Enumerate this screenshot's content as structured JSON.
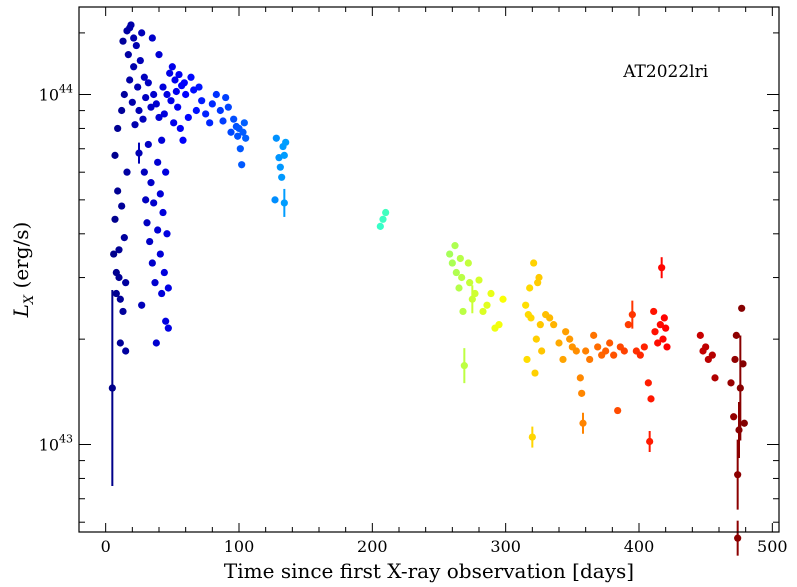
{
  "chart_data": {
    "type": "scatter",
    "title": "",
    "annotation": "AT2022lri",
    "xlabel": "Time since first X-ray observation [days]",
    "ylabel": "erg/s",
    "ylabel_symbol": "L",
    "ylabel_subscript": "X",
    "xlim": [
      -20,
      505
    ],
    "ylim_log10": [
      42.75,
      44.25
    ],
    "x_ticks": [
      0,
      100,
      200,
      300,
      400,
      500
    ],
    "x_tick_labels": [
      "0",
      "100",
      "200",
      "300",
      "400",
      "500"
    ],
    "y_ticks_log10": [
      43,
      44
    ],
    "y_tick_labels": [
      {
        "base": "10",
        "exp": "43"
      },
      {
        "base": "10",
        "exp": "44"
      }
    ],
    "y_minor_ticks_log10": [
      42.778,
      42.845,
      42.903,
      42.954,
      43.301,
      43.477,
      43.602,
      43.699,
      43.778,
      43.845,
      43.903,
      43.954,
      44.176
    ],
    "color_scale": "jet (by time)",
    "points": [
      {
        "x": 5,
        "y": 1.45e+43,
        "err": 0.28
      },
      {
        "x": 6,
        "y": 3.5e+43
      },
      {
        "x": 7,
        "y": 6.7e+43
      },
      {
        "x": 7,
        "y": 4.4e+43
      },
      {
        "x": 8,
        "y": 3.1e+43
      },
      {
        "x": 8,
        "y": 2.7e+43
      },
      {
        "x": 9,
        "y": 8e+43
      },
      {
        "x": 9,
        "y": 5.3e+43
      },
      {
        "x": 10,
        "y": 3.6e+43
      },
      {
        "x": 10,
        "y": 3e+43
      },
      {
        "x": 11,
        "y": 2.6e+43
      },
      {
        "x": 11,
        "y": 1.95e+43
      },
      {
        "x": 12,
        "y": 4.8e+43
      },
      {
        "x": 12,
        "y": 9e+43
      },
      {
        "x": 13,
        "y": 1.42e+44
      },
      {
        "x": 13,
        "y": 2.4e+43
      },
      {
        "x": 14,
        "y": 1e+44
      },
      {
        "x": 14,
        "y": 3.9e+43
      },
      {
        "x": 15,
        "y": 1.85e+43
      },
      {
        "x": 15,
        "y": 2.9e+43
      },
      {
        "x": 16,
        "y": 1.52e+44
      },
      {
        "x": 16,
        "y": 6e+43
      },
      {
        "x": 17,
        "y": 1.3e+44
      },
      {
        "x": 18,
        "y": 1.55e+44
      },
      {
        "x": 18,
        "y": 1.1e+44
      },
      {
        "x": 19,
        "y": 1.58e+44
      },
      {
        "x": 20,
        "y": 9.5e+43
      },
      {
        "x": 21,
        "y": 1.45e+44
      },
      {
        "x": 21,
        "y": 1.2e+44
      },
      {
        "x": 22,
        "y": 8.2e+43
      },
      {
        "x": 23,
        "y": 1.38e+44
      },
      {
        "x": 24,
        "y": 1.05e+44
      },
      {
        "x": 25,
        "y": 9e+43
      },
      {
        "x": 25,
        "y": 6.8e+43,
        "err": 0.03
      },
      {
        "x": 26,
        "y": 1.25e+44
      },
      {
        "x": 27,
        "y": 1.5e+44
      },
      {
        "x": 27,
        "y": 2.5e+43
      },
      {
        "x": 28,
        "y": 8.5e+43
      },
      {
        "x": 29,
        "y": 1.12e+44
      },
      {
        "x": 29,
        "y": 6e+43
      },
      {
        "x": 30,
        "y": 9.8e+43
      },
      {
        "x": 30,
        "y": 5e+43
      },
      {
        "x": 31,
        "y": 4.3e+43
      },
      {
        "x": 32,
        "y": 1.08e+44
      },
      {
        "x": 32,
        "y": 7.2e+43
      },
      {
        "x": 33,
        "y": 3.8e+43
      },
      {
        "x": 34,
        "y": 9.2e+43
      },
      {
        "x": 34,
        "y": 5.6e+43
      },
      {
        "x": 35,
        "y": 1.45e+44
      },
      {
        "x": 35,
        "y": 3.3e+43
      },
      {
        "x": 36,
        "y": 1e+44
      },
      {
        "x": 36,
        "y": 4.9e+43
      },
      {
        "x": 37,
        "y": 2.9e+43
      },
      {
        "x": 38,
        "y": 9.4e+43
      },
      {
        "x": 38,
        "y": 1.95e+43
      },
      {
        "x": 39,
        "y": 6.4e+43
      },
      {
        "x": 39,
        "y": 4.1e+43
      },
      {
        "x": 40,
        "y": 1.3e+44
      },
      {
        "x": 40,
        "y": 8.6e+43
      },
      {
        "x": 41,
        "y": 3.5e+43
      },
      {
        "x": 41,
        "y": 5.2e+43
      },
      {
        "x": 42,
        "y": 7.4e+43
      },
      {
        "x": 42,
        "y": 2.7e+43
      },
      {
        "x": 43,
        "y": 1.05e+44
      },
      {
        "x": 43,
        "y": 4.6e+43
      },
      {
        "x": 44,
        "y": 8.8e+43
      },
      {
        "x": 44,
        "y": 3.1e+43
      },
      {
        "x": 45,
        "y": 6e+43
      },
      {
        "x": 45,
        "y": 2.25e+43
      },
      {
        "x": 46,
        "y": 1e+44
      },
      {
        "x": 46,
        "y": 4e+43
      },
      {
        "x": 47,
        "y": 2.8e+43
      },
      {
        "x": 47,
        "y": 2.15e+43
      },
      {
        "x": 48,
        "y": 1.15e+44
      },
      {
        "x": 49,
        "y": 9.6e+43
      },
      {
        "x": 50,
        "y": 1.2e+44
      },
      {
        "x": 51,
        "y": 8.3e+43
      },
      {
        "x": 52,
        "y": 1.1e+44
      },
      {
        "x": 53,
        "y": 1.02e+44
      },
      {
        "x": 54,
        "y": 9.2e+43
      },
      {
        "x": 55,
        "y": 1.14e+44
      },
      {
        "x": 56,
        "y": 8e+43
      },
      {
        "x": 57,
        "y": 1.06e+44
      },
      {
        "x": 58,
        "y": 7.4e+43
      },
      {
        "x": 59,
        "y": 1.08e+44
      },
      {
        "x": 60,
        "y": 1e+44
      },
      {
        "x": 62,
        "y": 8.6e+43
      },
      {
        "x": 64,
        "y": 1.12e+44
      },
      {
        "x": 66,
        "y": 1.03e+44
      },
      {
        "x": 68,
        "y": 9e+43
      },
      {
        "x": 70,
        "y": 1.05e+44
      },
      {
        "x": 72,
        "y": 9.6e+43
      },
      {
        "x": 75,
        "y": 8.8e+43
      },
      {
        "x": 78,
        "y": 8.3e+43
      },
      {
        "x": 80,
        "y": 9.4e+43
      },
      {
        "x": 83,
        "y": 1e+44
      },
      {
        "x": 86,
        "y": 9e+43
      },
      {
        "x": 88,
        "y": 8.4e+43
      },
      {
        "x": 90,
        "y": 9.8e+43
      },
      {
        "x": 92,
        "y": 9.2e+43
      },
      {
        "x": 94,
        "y": 7.8e+43
      },
      {
        "x": 96,
        "y": 8.5e+43
      },
      {
        "x": 98,
        "y": 8.1e+43
      },
      {
        "x": 99,
        "y": 7.6e+43
      },
      {
        "x": 100,
        "y": 8e+43
      },
      {
        "x": 101,
        "y": 7e+43
      },
      {
        "x": 102,
        "y": 6.3e+43
      },
      {
        "x": 103,
        "y": 7.8e+43
      },
      {
        "x": 104,
        "y": 8.3e+43
      },
      {
        "x": 105,
        "y": 7.5e+43
      },
      {
        "x": 127,
        "y": 5e+43
      },
      {
        "x": 128,
        "y": 7.5e+43
      },
      {
        "x": 130,
        "y": 6.6e+43
      },
      {
        "x": 131,
        "y": 6.2e+43
      },
      {
        "x": 132,
        "y": 5.8e+43
      },
      {
        "x": 133,
        "y": 7.1e+43
      },
      {
        "x": 134,
        "y": 6.7e+43
      },
      {
        "x": 134,
        "y": 4.9e+43,
        "err": 0.04
      },
      {
        "x": 135,
        "y": 7.3e+43
      },
      {
        "x": 206,
        "y": 4.2e+43
      },
      {
        "x": 208,
        "y": 4.4e+43
      },
      {
        "x": 210,
        "y": 4.6e+43
      },
      {
        "x": 258,
        "y": 3.5e+43
      },
      {
        "x": 260,
        "y": 3.3e+43
      },
      {
        "x": 262,
        "y": 3.7e+43
      },
      {
        "x": 263,
        "y": 3.1e+43
      },
      {
        "x": 265,
        "y": 2.8e+43
      },
      {
        "x": 266,
        "y": 3.4e+43
      },
      {
        "x": 267,
        "y": 3e+43
      },
      {
        "x": 268,
        "y": 2.4e+43
      },
      {
        "x": 269,
        "y": 1.68e+43,
        "err": 0.05
      },
      {
        "x": 272,
        "y": 3.3e+43
      },
      {
        "x": 273,
        "y": 2.9e+43
      },
      {
        "x": 275,
        "y": 2.6e+43,
        "err": 0.04
      },
      {
        "x": 277,
        "y": 2.7e+43
      },
      {
        "x": 280,
        "y": 2.95e+43
      },
      {
        "x": 283,
        "y": 2.4e+43
      },
      {
        "x": 286,
        "y": 2.5e+43
      },
      {
        "x": 289,
        "y": 2.7e+43
      },
      {
        "x": 292,
        "y": 2.15e+43
      },
      {
        "x": 295,
        "y": 2.2e+43
      },
      {
        "x": 298,
        "y": 2.6e+43
      },
      {
        "x": 315,
        "y": 2.5e+43
      },
      {
        "x": 316,
        "y": 1.75e+43
      },
      {
        "x": 317,
        "y": 2.35e+43
      },
      {
        "x": 318,
        "y": 2.8e+43
      },
      {
        "x": 319,
        "y": 2.3e+43
      },
      {
        "x": 320,
        "y": 1.05e+43,
        "err": 0.03
      },
      {
        "x": 321,
        "y": 3.3e+43
      },
      {
        "x": 322,
        "y": 1.6e+43
      },
      {
        "x": 323,
        "y": 2e+43
      },
      {
        "x": 324,
        "y": 2.9e+43
      },
      {
        "x": 325,
        "y": 3e+43
      },
      {
        "x": 326,
        "y": 2.2e+43
      },
      {
        "x": 327,
        "y": 1.85e+43
      },
      {
        "x": 330,
        "y": 2.35e+43
      },
      {
        "x": 333,
        "y": 2.3e+43
      },
      {
        "x": 336,
        "y": 2.2e+43
      },
      {
        "x": 340,
        "y": 1.95e+43
      },
      {
        "x": 343,
        "y": 1.75e+43
      },
      {
        "x": 345,
        "y": 2.1e+43
      },
      {
        "x": 348,
        "y": 2e+43
      },
      {
        "x": 350,
        "y": 1.9e+43
      },
      {
        "x": 353,
        "y": 1.85e+43
      },
      {
        "x": 356,
        "y": 1.55e+43
      },
      {
        "x": 357,
        "y": 1.4e+43
      },
      {
        "x": 358,
        "y": 1.15e+43,
        "err": 0.03
      },
      {
        "x": 360,
        "y": 1.85e+43
      },
      {
        "x": 363,
        "y": 1.75e+43
      },
      {
        "x": 366,
        "y": 2.05e+43
      },
      {
        "x": 369,
        "y": 1.9e+43
      },
      {
        "x": 372,
        "y": 1.8e+43
      },
      {
        "x": 375,
        "y": 1.85e+43
      },
      {
        "x": 378,
        "y": 1.95e+43
      },
      {
        "x": 381,
        "y": 1.8e+43
      },
      {
        "x": 384,
        "y": 1.25e+43
      },
      {
        "x": 386,
        "y": 1.9e+43
      },
      {
        "x": 389,
        "y": 1.85e+43
      },
      {
        "x": 392,
        "y": 2.2e+43
      },
      {
        "x": 395,
        "y": 2.35e+43,
        "err": 0.04
      },
      {
        "x": 398,
        "y": 1.85e+43
      },
      {
        "x": 401,
        "y": 1.8e+43
      },
      {
        "x": 404,
        "y": 1.9e+43
      },
      {
        "x": 407,
        "y": 1.5e+43
      },
      {
        "x": 408,
        "y": 1.02e+43,
        "err": 0.03
      },
      {
        "x": 409,
        "y": 1.35e+43
      },
      {
        "x": 411,
        "y": 2.4e+43
      },
      {
        "x": 412,
        "y": 2.1e+43
      },
      {
        "x": 414,
        "y": 1.95e+43
      },
      {
        "x": 416,
        "y": 2.2e+43
      },
      {
        "x": 417,
        "y": 3.2e+43,
        "err": 0.03
      },
      {
        "x": 418,
        "y": 2e+43
      },
      {
        "x": 419,
        "y": 2.3e+43
      },
      {
        "x": 420,
        "y": 2.15e+43
      },
      {
        "x": 421,
        "y": 1.9e+43
      },
      {
        "x": 446,
        "y": 2.05e+43
      },
      {
        "x": 448,
        "y": 1.85e+43
      },
      {
        "x": 450,
        "y": 1.9e+43
      },
      {
        "x": 452,
        "y": 1.75e+43
      },
      {
        "x": 455,
        "y": 1.8e+43
      },
      {
        "x": 457,
        "y": 1.55e+43
      },
      {
        "x": 469,
        "y": 1.5e+43
      },
      {
        "x": 471,
        "y": 1.2e+43
      },
      {
        "x": 472,
        "y": 1.75e+43
      },
      {
        "x": 473,
        "y": 2.05e+43
      },
      {
        "x": 474,
        "y": 8.2e+42,
        "err": 0.1
      },
      {
        "x": 474,
        "y": 5.4e+42,
        "err": 0.05
      },
      {
        "x": 475,
        "y": 1.1e+43,
        "err": 0.08
      },
      {
        "x": 476,
        "y": 1.45e+43,
        "err": 0.15
      },
      {
        "x": 477,
        "y": 2.45e+43
      },
      {
        "x": 478,
        "y": 1.7e+43
      },
      {
        "x": 479,
        "y": 1.15e+43
      }
    ]
  }
}
